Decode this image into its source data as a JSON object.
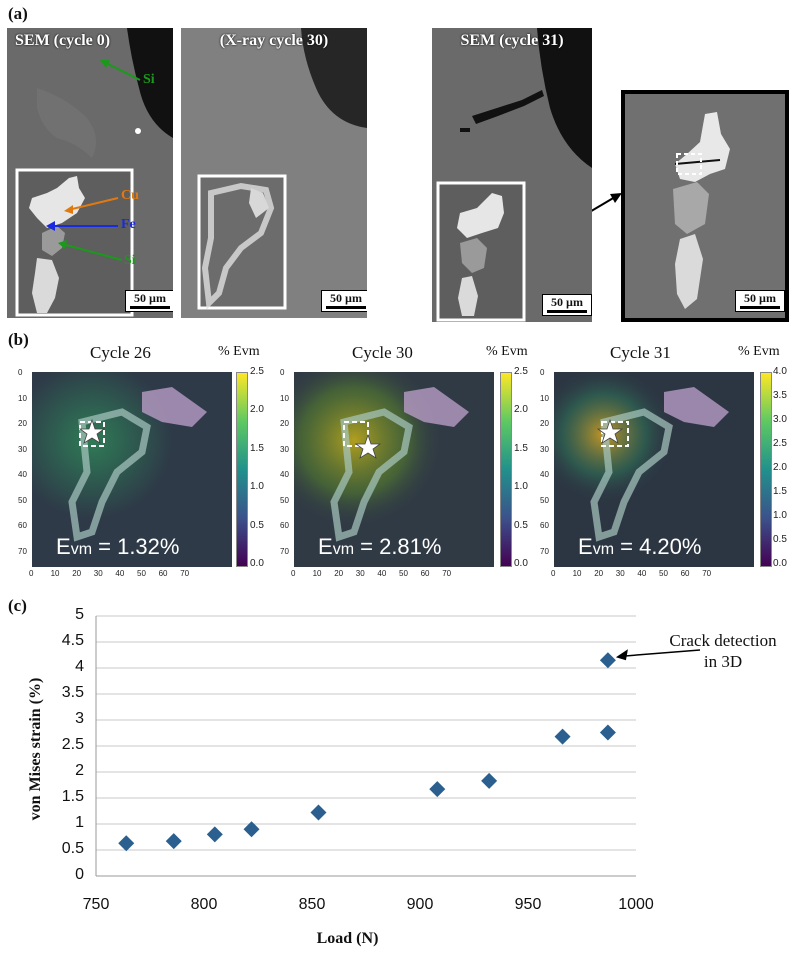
{
  "panel_a": {
    "label": "(a)",
    "images": [
      {
        "title": "SEM (cycle 0)",
        "scale": "50 µm"
      },
      {
        "title": "(X-ray cycle 30)",
        "scale": "50 µm"
      },
      {
        "title": "SEM (cycle 31)",
        "scale": "50 µm"
      },
      {
        "title": "",
        "scale": "50 µm"
      }
    ],
    "phases": {
      "si_top": "Si",
      "cu": "Cu",
      "fe": "Fe",
      "si_bottom": "Si"
    },
    "colors": {
      "si": "#1a9a1a",
      "cu": "#e07a10",
      "fe": "#1a2ae0"
    }
  },
  "panel_b": {
    "label": "(b)",
    "maps": [
      {
        "title": "Cycle 26",
        "cbar_title": "% Evm",
        "cbar_ticks": [
          "2.5",
          "2.0",
          "1.5",
          "1.0",
          "0.5",
          "0.0"
        ],
        "evm": "Evm = 1.32%",
        "evm_prefix": "E",
        "evm_sub": "vm",
        "evm_value": " = 1.32%"
      },
      {
        "title": "Cycle 30",
        "cbar_title": "% Evm",
        "cbar_ticks": [
          "2.5",
          "2.0",
          "1.5",
          "1.0",
          "0.5",
          "0.0"
        ],
        "evm": "Evm = 2.81%",
        "evm_prefix": "E",
        "evm_sub": "vm",
        "evm_value": " = 2.81%"
      },
      {
        "title": "Cycle 31",
        "cbar_title": "% Evm",
        "cbar_ticks": [
          "4.0",
          "3.5",
          "3.0",
          "2.5",
          "2.0",
          "1.5",
          "1.0",
          "0.5",
          "0.0"
        ],
        "evm": "Evm = 4.20%",
        "evm_prefix": "E",
        "evm_sub": "vm",
        "evm_value": " = 4.20%"
      }
    ],
    "axis_ticks_x": [
      "0",
      "10",
      "20",
      "30",
      "40",
      "50",
      "60",
      "70"
    ],
    "axis_ticks_y": [
      "0",
      "10",
      "20",
      "30",
      "40",
      "50",
      "60",
      "70"
    ]
  },
  "panel_c": {
    "label": "(c)"
  },
  "chart_data": {
    "type": "scatter",
    "title": "",
    "xlabel": "Load (N)",
    "ylabel": "von Mises strain (%)",
    "xlim": [
      750,
      1000
    ],
    "ylim": [
      0,
      5
    ],
    "xticks": [
      "750",
      "800",
      "850",
      "900",
      "950",
      "1000"
    ],
    "yticks": [
      "0",
      "0.5",
      "1",
      "1.5",
      "2",
      "2.5",
      "3",
      "3.5",
      "4",
      "4.5",
      "5"
    ],
    "grid": "horizontal",
    "marker": "diamond",
    "color": "#2a5f8f",
    "x": [
      764,
      786,
      805,
      822,
      853,
      908,
      932,
      966,
      987,
      987
    ],
    "y": [
      0.63,
      0.67,
      0.8,
      0.9,
      1.22,
      1.67,
      1.83,
      2.68,
      2.76,
      4.15
    ],
    "annotation": {
      "lines": [
        "Crack detection",
        "in 3D"
      ],
      "x": 987,
      "y": 4.15
    }
  }
}
